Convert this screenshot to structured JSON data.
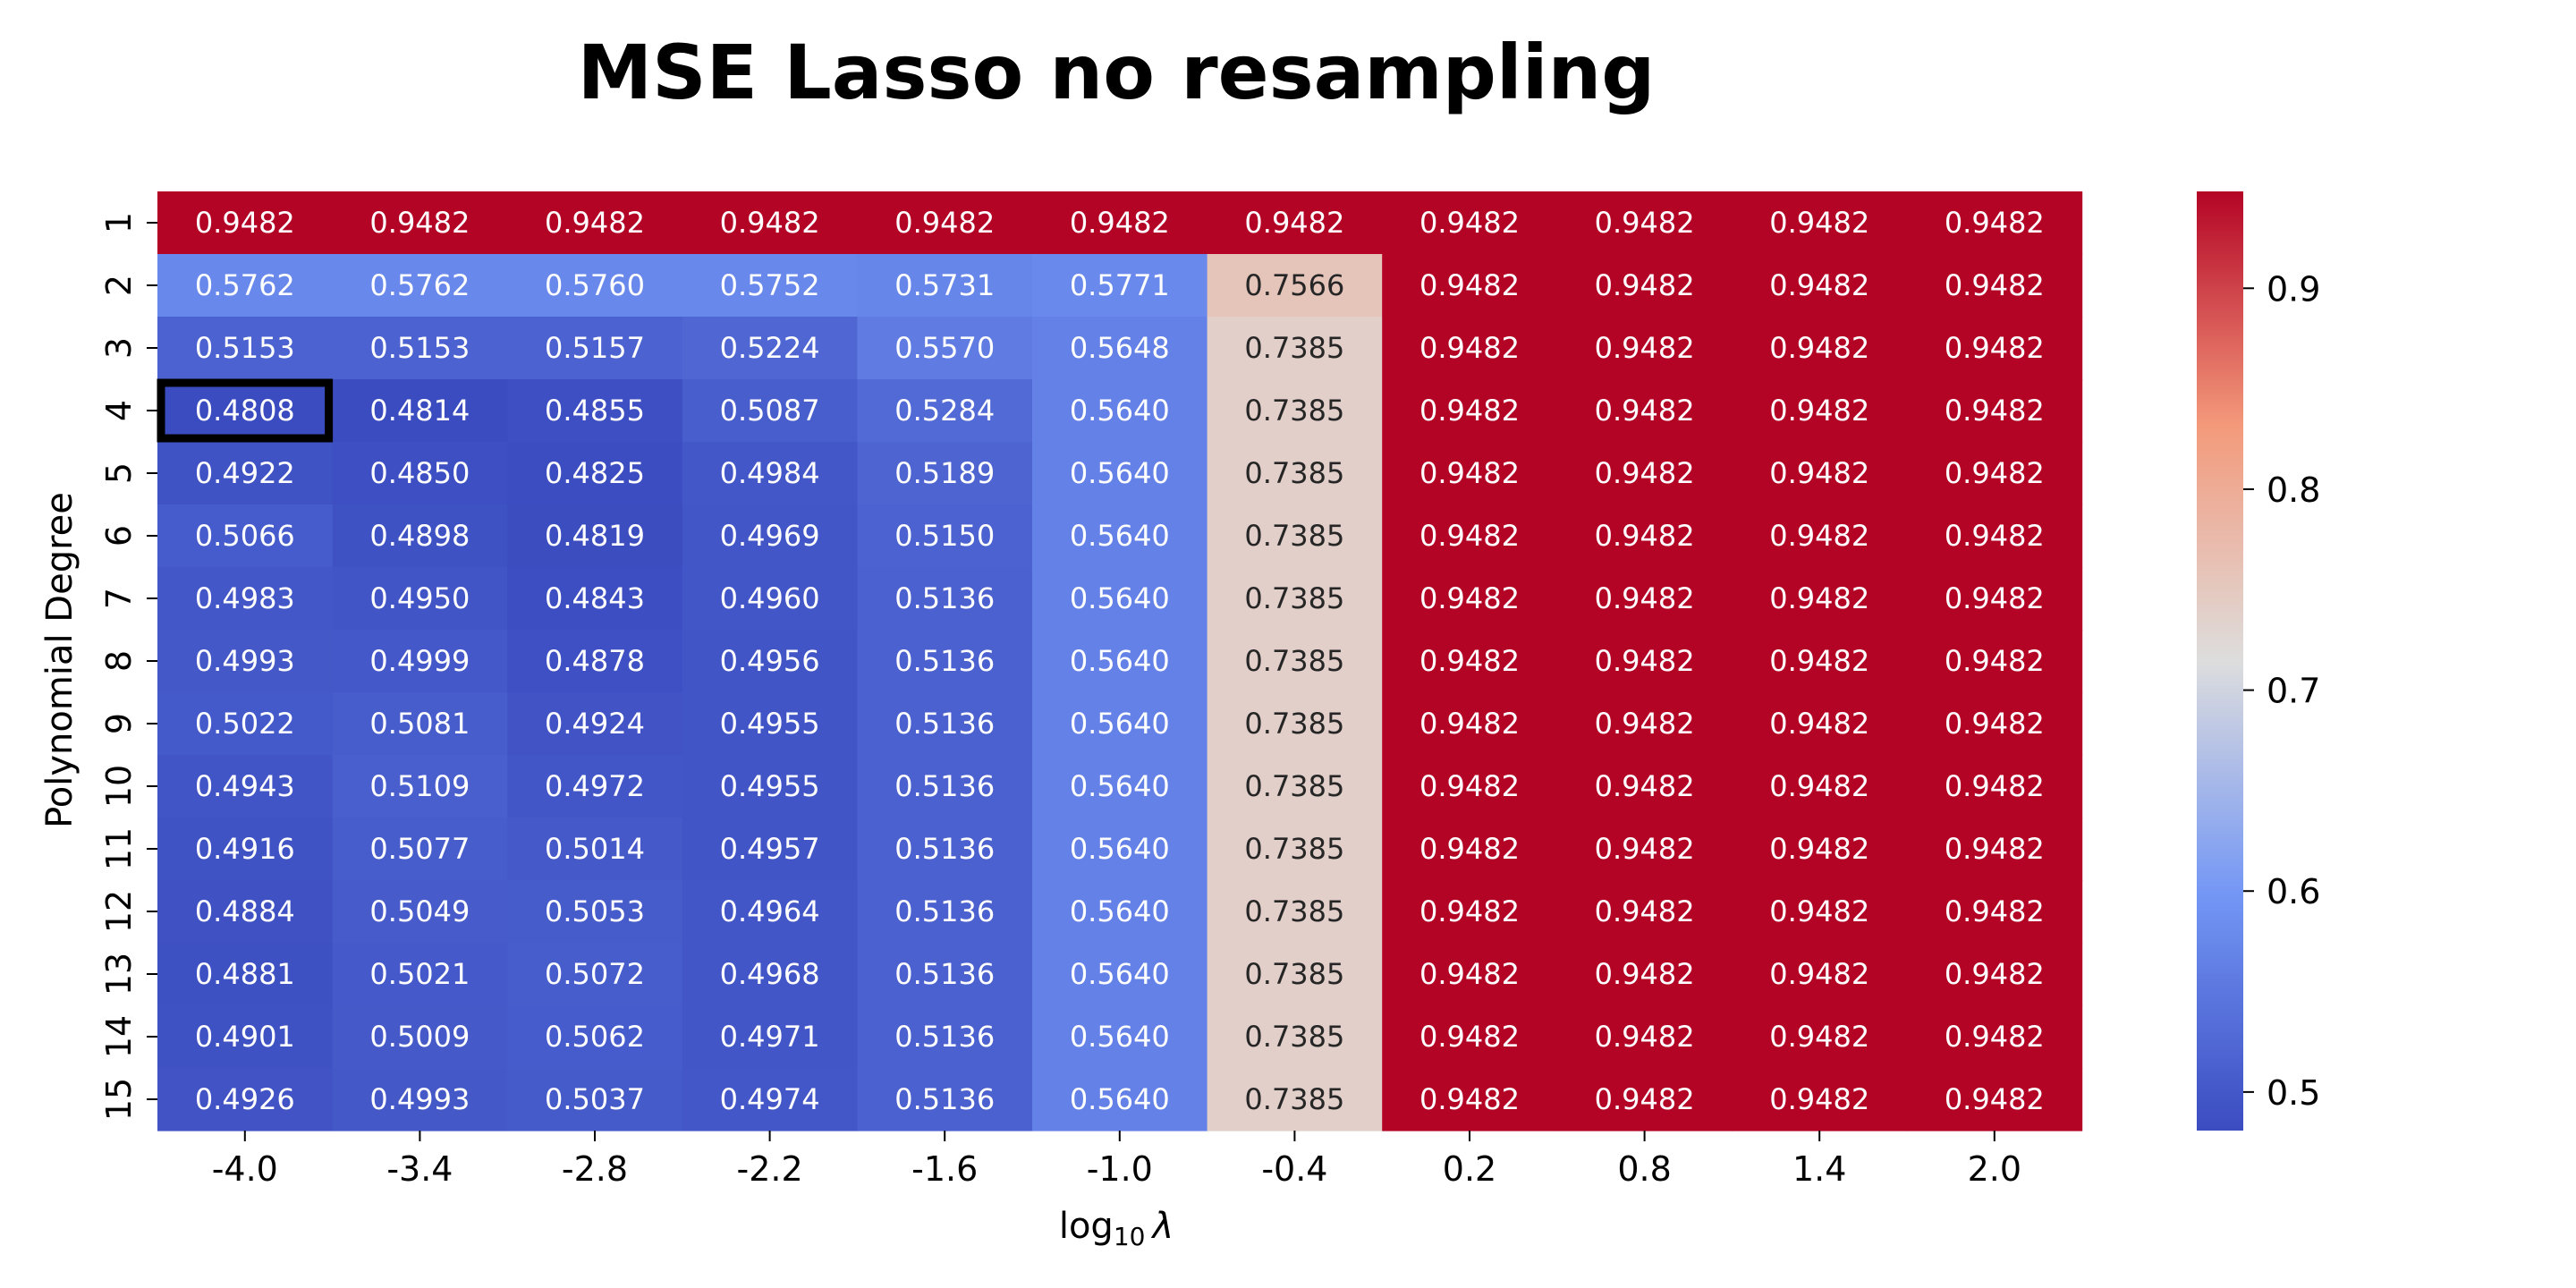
{
  "chart_data": {
    "type": "heatmap",
    "title": "MSE Lasso no resampling",
    "xlabel_prefix": "log",
    "xlabel_subscript": "10",
    "xlabel_symbol": "λ",
    "ylabel": "Polynomial Degree",
    "x_categories": [
      "-4.0",
      "-3.4",
      "-2.8",
      "-2.2",
      "-1.6",
      "-1.0",
      "-0.4",
      "0.2",
      "0.8",
      "1.4",
      "2.0"
    ],
    "y_categories": [
      "1",
      "2",
      "3",
      "4",
      "5",
      "6",
      "7",
      "8",
      "9",
      "10",
      "11",
      "12",
      "13",
      "14",
      "15"
    ],
    "values": [
      [
        0.9482,
        0.9482,
        0.9482,
        0.9482,
        0.9482,
        0.9482,
        0.9482,
        0.9482,
        0.9482,
        0.9482,
        0.9482
      ],
      [
        0.5762,
        0.5762,
        0.576,
        0.5752,
        0.5731,
        0.5771,
        0.7566,
        0.9482,
        0.9482,
        0.9482,
        0.9482
      ],
      [
        0.5153,
        0.5153,
        0.5157,
        0.5224,
        0.557,
        0.5648,
        0.7385,
        0.9482,
        0.9482,
        0.9482,
        0.9482
      ],
      [
        0.4808,
        0.4814,
        0.4855,
        0.5087,
        0.5284,
        0.564,
        0.7385,
        0.9482,
        0.9482,
        0.9482,
        0.9482
      ],
      [
        0.4922,
        0.485,
        0.4825,
        0.4984,
        0.5189,
        0.564,
        0.7385,
        0.9482,
        0.9482,
        0.9482,
        0.9482
      ],
      [
        0.5066,
        0.4898,
        0.4819,
        0.4969,
        0.515,
        0.564,
        0.7385,
        0.9482,
        0.9482,
        0.9482,
        0.9482
      ],
      [
        0.4983,
        0.495,
        0.4843,
        0.496,
        0.5136,
        0.564,
        0.7385,
        0.9482,
        0.9482,
        0.9482,
        0.9482
      ],
      [
        0.4993,
        0.4999,
        0.4878,
        0.4956,
        0.5136,
        0.564,
        0.7385,
        0.9482,
        0.9482,
        0.9482,
        0.9482
      ],
      [
        0.5022,
        0.5081,
        0.4924,
        0.4955,
        0.5136,
        0.564,
        0.7385,
        0.9482,
        0.9482,
        0.9482,
        0.9482
      ],
      [
        0.4943,
        0.5109,
        0.4972,
        0.4955,
        0.5136,
        0.564,
        0.7385,
        0.9482,
        0.9482,
        0.9482,
        0.9482
      ],
      [
        0.4916,
        0.5077,
        0.5014,
        0.4957,
        0.5136,
        0.564,
        0.7385,
        0.9482,
        0.9482,
        0.9482,
        0.9482
      ],
      [
        0.4884,
        0.5049,
        0.5053,
        0.4964,
        0.5136,
        0.564,
        0.7385,
        0.9482,
        0.9482,
        0.9482,
        0.9482
      ],
      [
        0.4881,
        0.5021,
        0.5072,
        0.4968,
        0.5136,
        0.564,
        0.7385,
        0.9482,
        0.9482,
        0.9482,
        0.9482
      ],
      [
        0.4901,
        0.5009,
        0.5062,
        0.4971,
        0.5136,
        0.564,
        0.7385,
        0.9482,
        0.9482,
        0.9482,
        0.9482
      ],
      [
        0.4926,
        0.4993,
        0.5037,
        0.4974,
        0.5136,
        0.564,
        0.7385,
        0.9482,
        0.9482,
        0.9482,
        0.9482
      ]
    ],
    "value_format_decimals": 4,
    "highlight_cell": {
      "row_label": "4",
      "col_label": "-4.0"
    },
    "colormap": "coolwarm",
    "colormap_stops": [
      "#3b4cc0",
      "#7396f5",
      "#dddddd",
      "#f49a7b",
      "#b40426"
    ],
    "vmin": 0.4808,
    "vmax": 0.9482,
    "colorbar_ticks": [
      0.5,
      0.6,
      0.7,
      0.8,
      0.9
    ],
    "colorbar_tick_labels": [
      "0.5",
      "0.6",
      "0.7",
      "0.8",
      "0.9"
    ],
    "grid": false
  }
}
